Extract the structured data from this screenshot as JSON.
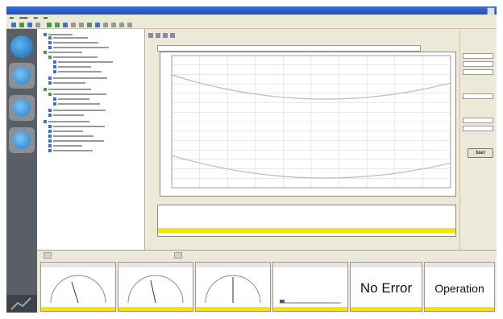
{
  "window": {
    "title": ""
  },
  "dock": {
    "items": [
      {
        "label": "",
        "icon": "logo-globe-icon"
      },
      {
        "label": "",
        "icon": "gauge-globe-icon"
      },
      {
        "label": "",
        "icon": "gauge-globe-icon"
      },
      {
        "label": "",
        "icon": "gauge-globe-icon"
      }
    ]
  },
  "colors": {
    "titlebar": "#2456c8",
    "status_yellow": "#f2e600",
    "curve": "#b9b9c4",
    "grid": "#d9d9e0"
  },
  "bottom": {
    "panes": [
      {
        "type": "gauge"
      },
      {
        "type": "gauge"
      },
      {
        "type": "gauge"
      },
      {
        "type": "bars"
      },
      {
        "type": "text",
        "text": "No Error"
      },
      {
        "type": "text",
        "text": "Operation"
      }
    ]
  },
  "right_panel": {
    "start_label": "Start"
  }
}
